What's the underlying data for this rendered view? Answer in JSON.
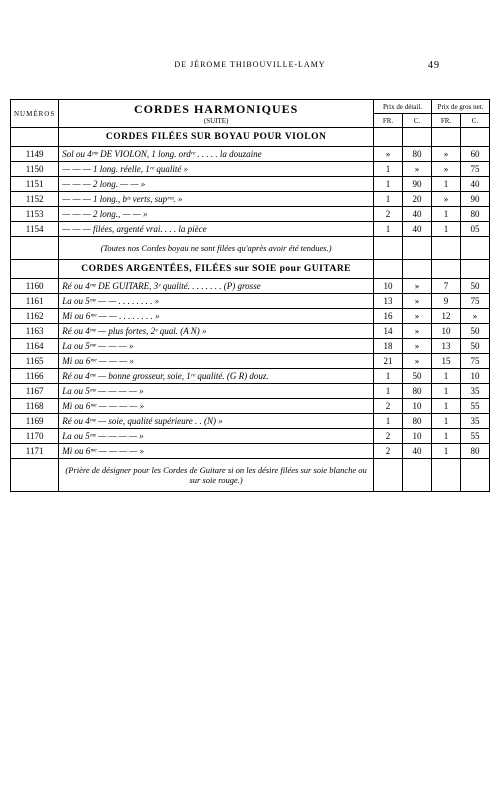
{
  "header": {
    "publisher": "DE JÉROME THIBOUVILLE-LAMY",
    "page_num": "49"
  },
  "columns": {
    "numeros": "NUMÉROS",
    "prix_detail": "Prix de détail.",
    "prix_gros": "Prix de gros net.",
    "fr": "FR.",
    "c": "C."
  },
  "title": {
    "main": "CORDES HARMONIQUES",
    "suite": "(SUITE)"
  },
  "sections": [
    {
      "heading": "CORDES FILÉES SUR BOYAU POUR VIOLON",
      "rows": [
        {
          "num": "1149",
          "desc": "Sol ou 4ᵐᵉ DE VIOLON, 1 long. ordʳᵉ . . . . . la douzaine",
          "fr": "»",
          "c": "80",
          "fr2": "»",
          "c2": "60"
        },
        {
          "num": "1150",
          "desc": "   —      —      —     1 long. réelle, 1ʳᵉ qualité    »",
          "fr": "1",
          "c": "»",
          "fr2": "»",
          "c2": "75"
        },
        {
          "num": "1151",
          "desc": "   —      —      —     2 long.    —        —           »",
          "fr": "1",
          "c": "90",
          "fr2": "1",
          "c2": "40"
        },
        {
          "num": "1152",
          "desc": "   —      —      —     1 long., bᵗˢ verts, supʳᵉˢ.     »",
          "fr": "1",
          "c": "20",
          "fr2": "»",
          "c2": "90"
        },
        {
          "num": "1153",
          "desc": "   —      —      —     2 long.,     —        —         »",
          "fr": "2",
          "c": "40",
          "fr2": "1",
          "c2": "80"
        },
        {
          "num": "1154",
          "desc": "   —      —      —     filées, argenté vrai. . . . la pièce",
          "fr": "1",
          "c": "40",
          "fr2": "1",
          "c2": "05"
        }
      ],
      "note": "(Toutes nos Cordes boyau ne sont filées qu'après avoir été tendues.)"
    },
    {
      "heading": "CORDES ARGENTÉES, FILÉES sur SOIE pour GUITARE",
      "rows": [
        {
          "num": "1160",
          "desc": "Ré ou 4ᵐᵉ DE GUITARE, 3ᵉ qualité. . . . . . . . (P) grosse",
          "fr": "10",
          "c": "»",
          "fr2": "7",
          "c2": "50"
        },
        {
          "num": "1161",
          "desc": "La ou 5ᵐᵉ      —            —     . . . . . . . .       »",
          "fr": "13",
          "c": "»",
          "fr2": "9",
          "c2": "75"
        },
        {
          "num": "1162",
          "desc": "Mi ou 6ᵐᵉ      —            —     . . . . . . . .       »",
          "fr": "16",
          "c": "»",
          "fr2": "12",
          "c2": "»"
        }
      ]
    },
    {
      "rows": [
        {
          "num": "1163",
          "desc": "Ré ou 4ᵐᵉ      —     plus fortes, 2ᵉ qual. (A N)        »",
          "fr": "14",
          "c": "»",
          "fr2": "10",
          "c2": "50"
        },
        {
          "num": "1164",
          "desc": "La ou 5ᵐᵉ      —            —            —              »",
          "fr": "18",
          "c": "»",
          "fr2": "13",
          "c2": "50"
        },
        {
          "num": "1165",
          "desc": "Mi ou 6ᵐᵉ      —            —            —              »",
          "fr": "21",
          "c": "»",
          "fr2": "15",
          "c2": "75"
        }
      ]
    },
    {
      "rows": [
        {
          "num": "1166",
          "desc": "Ré ou 4ᵐᵉ   —   bonne grosseur, soie, 1ʳᵉ qualité. (G R) douz.",
          "fr": "1",
          "c": "50",
          "fr2": "1",
          "c2": "10"
        },
        {
          "num": "1167",
          "desc": "La ou 5ᵐᵉ   —        —         —            —           »",
          "fr": "1",
          "c": "80",
          "fr2": "1",
          "c2": "35"
        },
        {
          "num": "1168",
          "desc": "Mi ou 6ᵐᵉ   —        —         —            —           »",
          "fr": "2",
          "c": "10",
          "fr2": "1",
          "c2": "55"
        }
      ]
    },
    {
      "rows": [
        {
          "num": "1169",
          "desc": "Ré ou 4ᵐᵉ   —   soie, qualité supérieure . . (N)        »",
          "fr": "1",
          "c": "80",
          "fr2": "1",
          "c2": "35"
        },
        {
          "num": "1170",
          "desc": "La ou 5ᵐᵉ   —        —         —            —           »",
          "fr": "2",
          "c": "10",
          "fr2": "1",
          "c2": "55"
        },
        {
          "num": "1171",
          "desc": "Mi ou 6ᵐᵉ   —        —         —            —           »",
          "fr": "2",
          "c": "40",
          "fr2": "1",
          "c2": "80"
        }
      ],
      "note": "(Prière de désigner pour les Cordes de Guitare si on les désire filées sur soie blanche ou sur soie rouge.)"
    }
  ]
}
